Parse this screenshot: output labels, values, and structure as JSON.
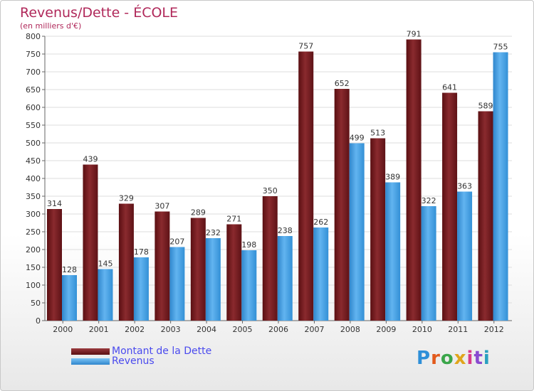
{
  "header": {
    "title": "Revenus/Dette - ÉCOLE",
    "subtitle": "(en milliers d'€)"
  },
  "legend": {
    "debt_label": "Montant de la Dette",
    "revenue_label": "Revenus"
  },
  "brand": {
    "name": "Proxiti"
  },
  "colors": {
    "debt": "#7a1e22",
    "revenue": "#4aa3e6",
    "title": "#b0285a",
    "legend_text": "#4a4aee"
  },
  "chart_data": {
    "type": "bar",
    "title": "Revenus/Dette - ÉCOLE",
    "subtitle": "(en milliers d'€)",
    "xlabel": "",
    "ylabel": "",
    "ylim": [
      0,
      800
    ],
    "yticks": [
      0,
      50,
      100,
      150,
      200,
      250,
      300,
      350,
      400,
      450,
      500,
      550,
      600,
      650,
      700,
      750,
      800
    ],
    "grid": true,
    "legend": "bottom-left",
    "categories": [
      "2000",
      "2001",
      "2002",
      "2003",
      "2004",
      "2005",
      "2006",
      "2007",
      "2008",
      "2009",
      "2010",
      "2011",
      "2012"
    ],
    "series": [
      {
        "name": "Montant de la Dette",
        "values": [
          314,
          439,
          329,
          307,
          289,
          271,
          350,
          757,
          652,
          513,
          791,
          641,
          589
        ]
      },
      {
        "name": "Revenus",
        "values": [
          128,
          145,
          178,
          207,
          232,
          198,
          238,
          262,
          499,
          389,
          322,
          363,
          755
        ]
      }
    ]
  }
}
